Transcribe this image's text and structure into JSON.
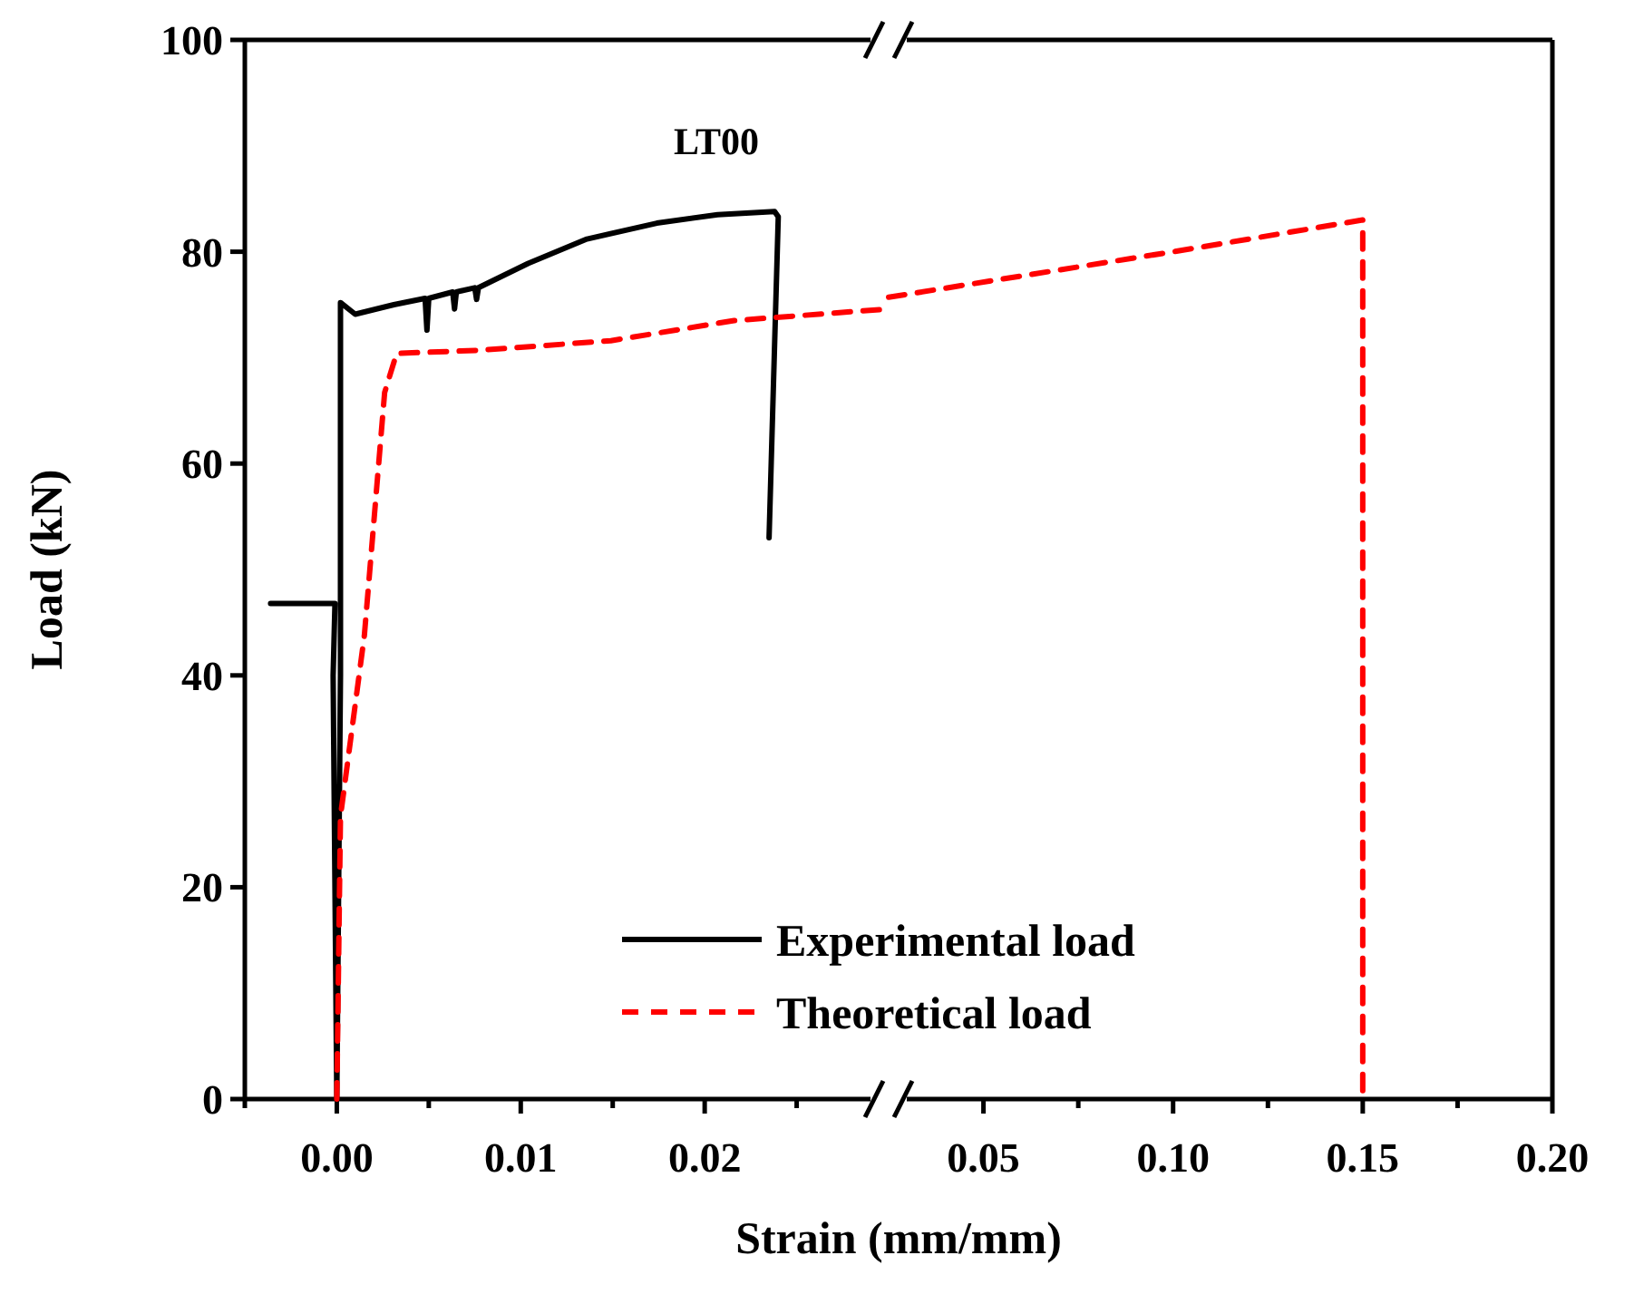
{
  "chart_data": [
    {
      "type": "line",
      "annotations": [
        "LT00"
      ],
      "xlabel": "Strain (mm/mm)",
      "ylabel": "Load (kN)",
      "xlim": [
        -0.005,
        0.03
      ],
      "xticks": [
        {
          "value": -0.005,
          "label": null
        },
        {
          "value": 0,
          "label": "0.00"
        },
        {
          "value": 0.005,
          "label": null
        },
        {
          "value": 0.01,
          "label": "0.01"
        },
        {
          "value": 0.015,
          "label": null
        },
        {
          "value": 0.02,
          "label": "0.02"
        },
        {
          "value": 0.025,
          "label": null
        }
      ],
      "ylim": [
        0,
        100
      ],
      "yticks": [
        0,
        20,
        40,
        60,
        80,
        100
      ],
      "legend": "bottom",
      "series": [
        {
          "name": "Experimental load",
          "color": "#000000",
          "line_style": "solid",
          "x": [
            -0.0036,
            -0.0001,
            -0.0002,
            0,
            0.0002,
            0.0002,
            0.0002,
            0.001,
            0.0031,
            0.0048,
            0.0049,
            0.005,
            0.0063,
            0.0064,
            0.0065,
            0.0075,
            0.0076,
            0.0077,
            0.0104,
            0.0136,
            0.0174,
            0.0207,
            0.0238,
            0.024,
            0.0235
          ],
          "values": [
            46.8,
            46.8,
            40,
            0,
            40,
            60,
            75.2,
            74.1,
            75.0,
            75.6,
            72.6,
            75.6,
            76.2,
            74.6,
            76.2,
            76.6,
            75.5,
            76.6,
            78.9,
            81.2,
            82.7,
            83.5,
            83.8,
            83.3,
            53.0
          ]
        },
        {
          "name": "Theoretical load",
          "color": "#ff0000",
          "line_style": "dashed",
          "x": [
            0,
            0.0002,
            0.0015,
            0.0026,
            0.00325,
            0.0078,
            0.0149,
            0.0216,
            0.0239,
            0.03
          ],
          "values": [
            0,
            26.7,
            43.8,
            66.7,
            70.4,
            70.7,
            71.6,
            73.5,
            73.8,
            74.6
          ]
        }
      ]
    },
    {
      "type": "line",
      "xlim": [
        0.025,
        0.2
      ],
      "xticks": [
        {
          "value": 0.05,
          "label": "0.05"
        },
        {
          "value": 0.075,
          "label": null
        },
        {
          "value": 0.1,
          "label": "0.10"
        },
        {
          "value": 0.125,
          "label": null
        },
        {
          "value": 0.15,
          "label": "0.15"
        },
        {
          "value": 0.175,
          "label": null
        },
        {
          "value": 0.2,
          "label": "0.20"
        }
      ],
      "ylim": [
        0,
        100
      ],
      "tick_labels": "x",
      "series": [
        {
          "color": "#ff0000",
          "line_style": "dashed",
          "x": [
            0.025,
            0.0476,
            0.1,
            0.15,
            0.15
          ],
          "values": [
            75.7,
            77.0,
            80.0,
            83.0,
            0
          ]
        }
      ]
    }
  ]
}
